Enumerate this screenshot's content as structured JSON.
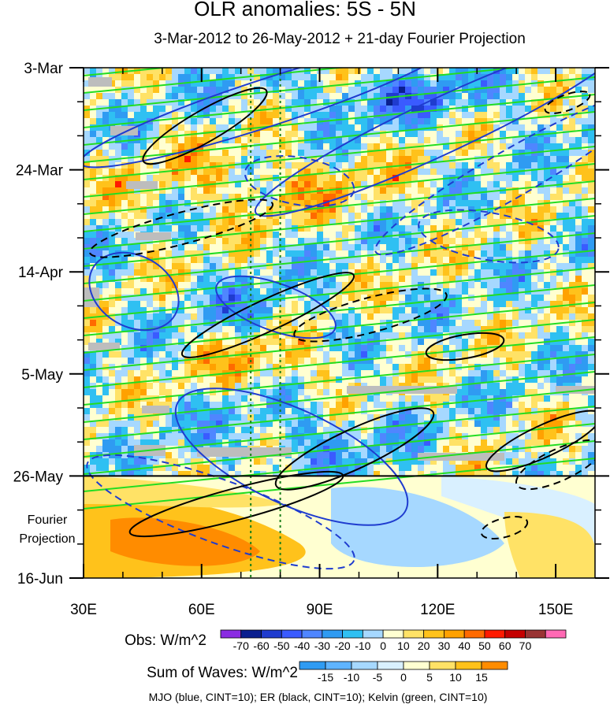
{
  "chart_data": {
    "type": "heatmap",
    "title": "OLR anomalies: 5S - 5N",
    "subtitle": "3-Mar-2012 to 26-May-2012 + 21-day Fourier Projection",
    "x_ticks": [
      "30E",
      "60E",
      "90E",
      "120E",
      "150E"
    ],
    "x_tick_values": [
      30,
      60,
      90,
      120,
      150
    ],
    "xlim": [
      30,
      160
    ],
    "y_ticks": [
      "3-Mar",
      "24-Mar",
      "14-Apr",
      "5-May",
      "26-May",
      "16-Jun"
    ],
    "y_tick_days": [
      0,
      21,
      42,
      63,
      84,
      105
    ],
    "ylim_days": [
      0,
      105
    ],
    "projection_label": "Fourier Projection",
    "observation_end_day": 84,
    "reference_lines_lon": [
      72.5,
      80
    ],
    "obs_colorbar": {
      "label": "Obs: W/m^2",
      "levels": [
        "-70",
        "-60",
        "-50",
        "-40",
        "-30",
        "-20",
        "-10",
        "0",
        "10",
        "20",
        "30",
        "40",
        "50",
        "60",
        "70"
      ],
      "colors": [
        "#8a2be2",
        "#0a1f8f",
        "#1f3ccf",
        "#3a5bff",
        "#4f86ff",
        "#2f9bf2",
        "#2fc0f2",
        "#a6d8ff",
        "#ffffd1",
        "#ffe266",
        "#ffc21b",
        "#ffa100",
        "#ff6a00",
        "#ff1a00",
        "#c50000",
        "#993333",
        "#ff69b4"
      ]
    },
    "waves_colorbar": {
      "label": "Sum of Waves: W/m^2",
      "levels": [
        "-15",
        "-10",
        "-5",
        "0",
        "5",
        "10",
        "15"
      ],
      "colors": [
        "#2f9bf2",
        "#5fb4ff",
        "#a6d8ff",
        "#d9f0ff",
        "#ffffd1",
        "#ffe266",
        "#ffc21b",
        "#ff8c00"
      ]
    },
    "footer": "MJO (blue, CINT=10); ER (black, CINT=10); Kelvin (green, CINT=10)"
  }
}
